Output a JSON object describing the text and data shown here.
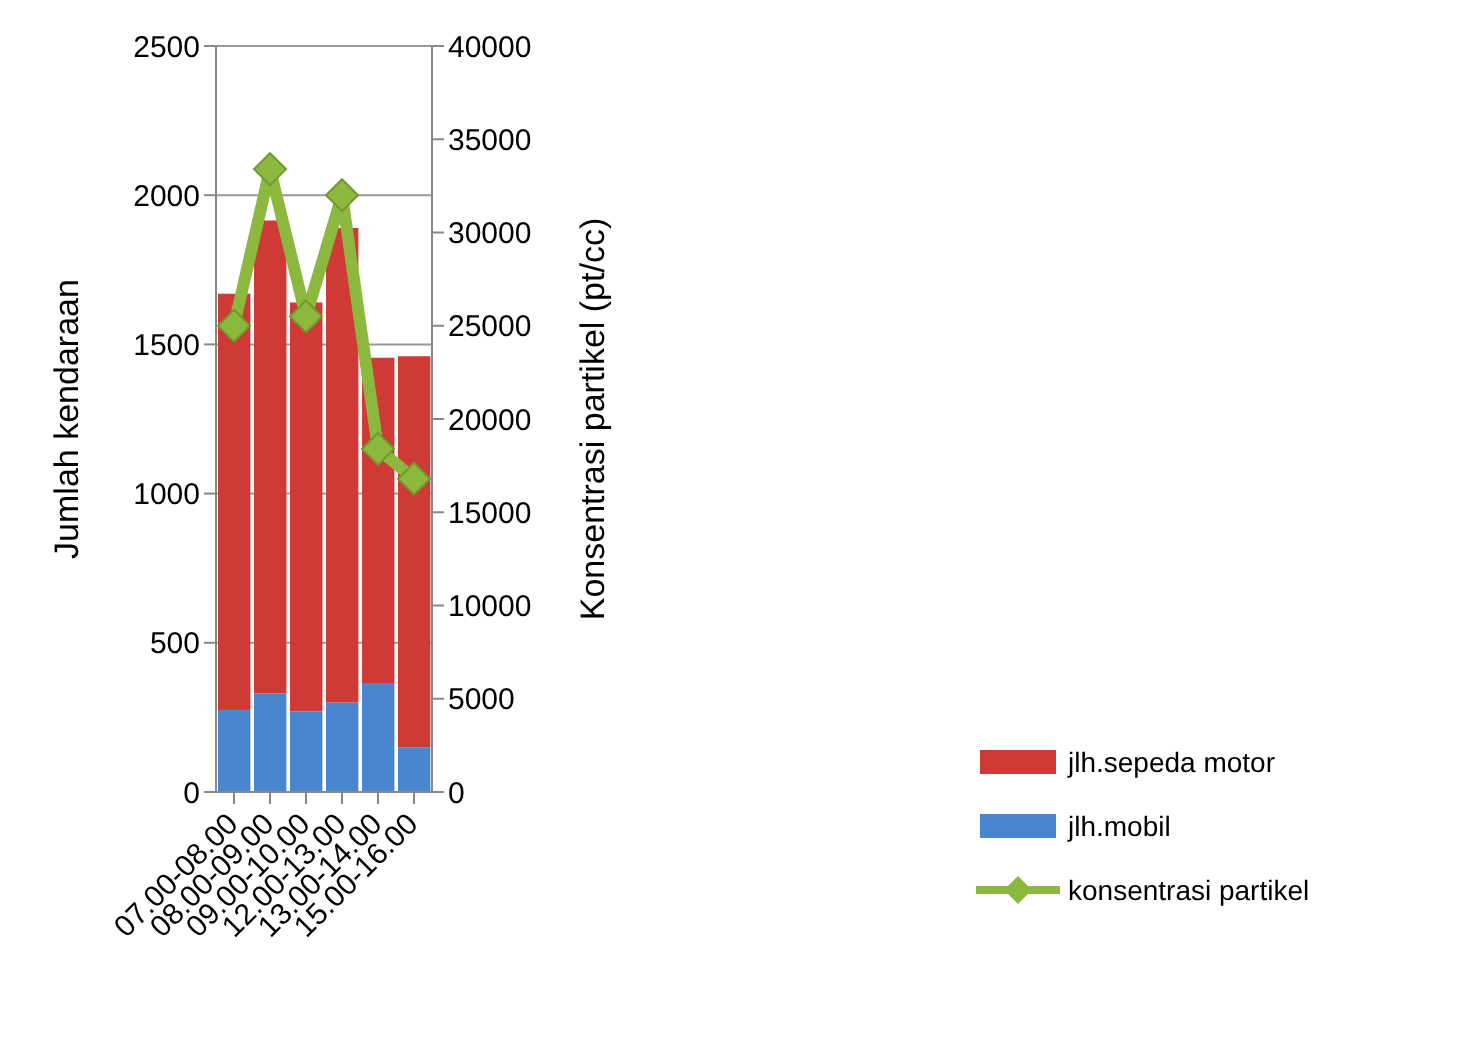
{
  "chart_data": {
    "type": "bar",
    "stacked": true,
    "ylabel": "Jumlah kendaraan",
    "y2label": "Konsentrasi partikel (pt/cc)",
    "categories": [
      "07.00-08.00",
      "08.00-09.00",
      "09.00-10.00",
      "12.00-13.00",
      "13.00-14.00",
      "15.00-16.00"
    ],
    "series": [
      {
        "name": "jlh.mobil",
        "color": "#4a86d0",
        "values": [
          275,
          330,
          270,
          300,
          365,
          150
        ]
      },
      {
        "name": "jlh.sepeda motor",
        "color": "#d03a36",
        "values": [
          1395,
          1585,
          1370,
          1590,
          1090,
          1310
        ]
      },
      {
        "name": "konsentrasi partikel",
        "type": "line",
        "axis": "y2",
        "color": "#8db83e",
        "marker": "diamond",
        "values": [
          25000,
          33400,
          25500,
          32000,
          18400,
          16800
        ]
      }
    ],
    "ylim": [
      0,
      2500
    ],
    "yticks": [
      0,
      500,
      1000,
      1500,
      2000,
      2500
    ],
    "y2lim": [
      0,
      40000
    ],
    "y2ticks": [
      0,
      5000,
      10000,
      15000,
      20000,
      25000,
      30000,
      35000,
      40000
    ],
    "grid": "y",
    "legend": "bottom right"
  }
}
